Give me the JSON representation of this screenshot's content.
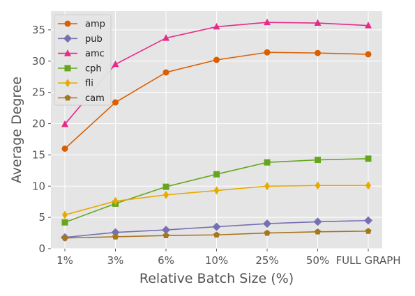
{
  "chart_data": {
    "type": "line",
    "title": "",
    "xlabel": "Relative Batch Size (%)",
    "ylabel": "Average Degree",
    "categories": [
      "1%",
      "3%",
      "6%",
      "10%",
      "25%",
      "50%",
      "FULL GRAPH"
    ],
    "ylim": [
      0,
      38
    ],
    "yticks": [
      0,
      5,
      10,
      15,
      20,
      25,
      30,
      35
    ],
    "grid": true,
    "legend_position": "top-left",
    "series": [
      {
        "name": "amp",
        "color": "#d95f02",
        "marker": "circle",
        "values": [
          16.0,
          23.4,
          28.2,
          30.2,
          31.4,
          31.3,
          31.1
        ]
      },
      {
        "name": "pub",
        "color": "#7570b3",
        "marker": "diamond",
        "values": [
          1.8,
          2.6,
          3.0,
          3.5,
          4.0,
          4.3,
          4.5
        ]
      },
      {
        "name": "amc",
        "color": "#e7298a",
        "marker": "triangle",
        "values": [
          19.9,
          29.5,
          33.7,
          35.5,
          36.2,
          36.1,
          35.7
        ]
      },
      {
        "name": "cph",
        "color": "#66a61e",
        "marker": "square",
        "values": [
          4.2,
          7.2,
          9.9,
          11.9,
          13.8,
          14.2,
          14.4
        ]
      },
      {
        "name": "fli",
        "color": "#e6ab02",
        "marker": "thin-diamond",
        "values": [
          5.4,
          7.6,
          8.6,
          9.3,
          10.0,
          10.1,
          10.1
        ]
      },
      {
        "name": "cam",
        "color": "#a6761d",
        "marker": "pentagon",
        "values": [
          1.7,
          1.9,
          2.1,
          2.2,
          2.5,
          2.7,
          2.8
        ]
      }
    ]
  }
}
